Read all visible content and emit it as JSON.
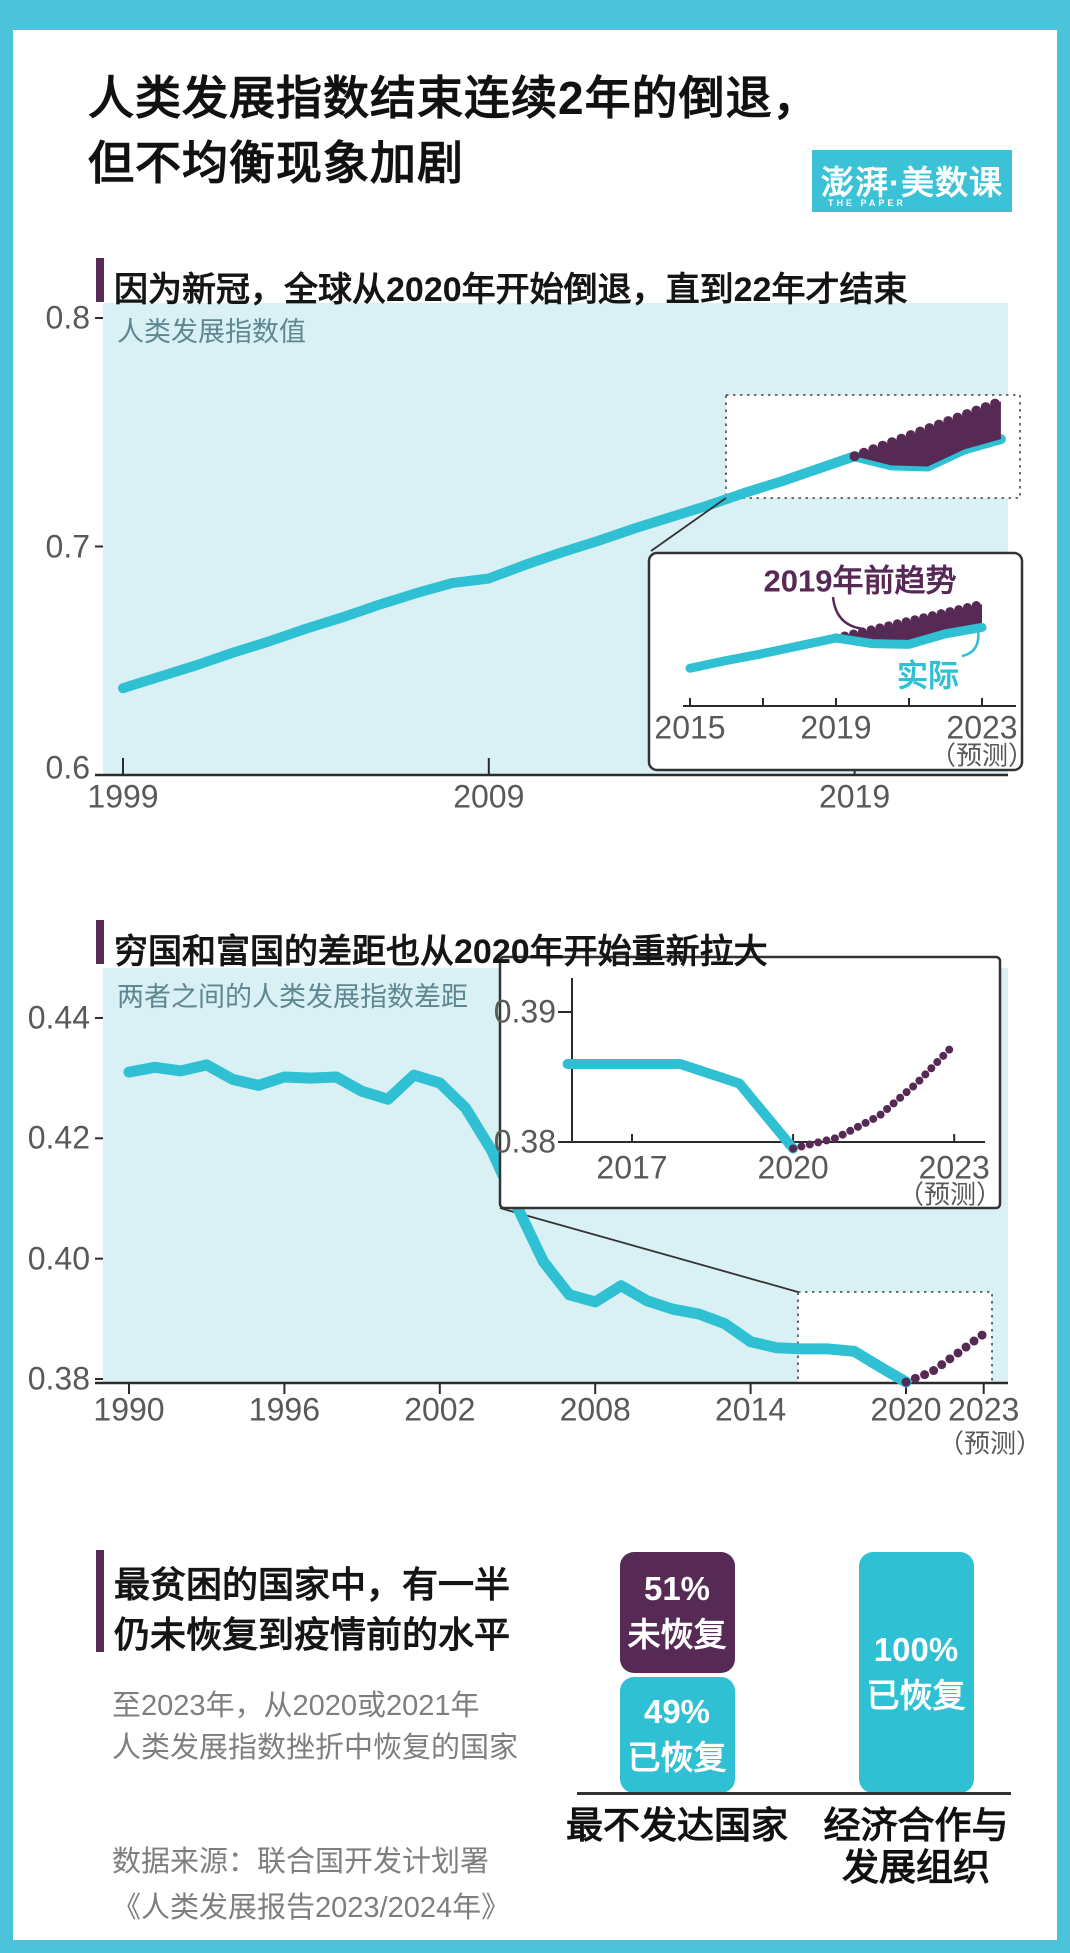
{
  "header": {
    "title_line1": "人类发展指数结束连续2年的倒退，",
    "title_line2": "但不均衡现象加剧"
  },
  "logo": {
    "name": "澎湃·美数课",
    "tagline": "THE PAPER"
  },
  "source": {
    "line1": "数据来源：联合国开发计划署",
    "line2": "《人类发展报告2023/2024年》"
  },
  "colors": {
    "cyan_line": "#2fc0d3",
    "frame_cyan": "#4cc3d9",
    "light_plot_bg": "#d9f0f4",
    "purple": "#572a55",
    "gray_text": "#7e7e7e"
  },
  "chart_data": [
    {
      "id": "world-hdi",
      "type": "line",
      "title": "因为新冠，全球从2020年开始倒退，直到22年才结束",
      "inplot_label": "人类发展指数值",
      "ylim": [
        0.6,
        0.8
      ],
      "grid": false,
      "yticks": [
        {
          "v": 0.8,
          "label": "0.8"
        },
        {
          "v": 0.7,
          "label": "0.7"
        },
        {
          "v": 0.6,
          "label": "0.6"
        }
      ],
      "xticks": [
        {
          "v": 1999,
          "label": "1999"
        },
        {
          "v": 2009,
          "label": "2009"
        },
        {
          "v": 2019,
          "label": "2019"
        }
      ],
      "series": [
        {
          "name": "实际",
          "x_start": 1999,
          "values": [
            0.638,
            0.643,
            0.648,
            0.6535,
            0.6585,
            0.664,
            0.669,
            0.6745,
            0.6795,
            0.684,
            0.686,
            0.692,
            0.6975,
            0.7025,
            0.708,
            0.713,
            0.718,
            0.7235,
            0.7285,
            0.734,
            0.7395,
            0.7355,
            0.735,
            0.7425,
            0.747
          ]
        },
        {
          "name": "2019年前趋势",
          "x_start": 2019,
          "style": "dotted-area",
          "values": [
            0.7395,
            0.7455,
            0.7515,
            0.7575,
            0.7635
          ]
        }
      ],
      "inset": {
        "trend_label": "2019年前趋势",
        "actual_label": "实际",
        "xticks": [
          {
            "v": 2015,
            "label": "2015"
          },
          {
            "v": 2019,
            "label": "2019"
          },
          {
            "v": 2023,
            "label": "2023"
          }
        ],
        "minor_xticks": [
          2017,
          2021
        ],
        "forecast_note": "（预测）",
        "actual_x_start": 2015,
        "actual_values": [
          0.718,
          0.7235,
          0.7285,
          0.734,
          0.7395,
          0.7355,
          0.735,
          0.7425,
          0.747
        ],
        "trend_x_start": 2019,
        "trend_values": [
          0.7395,
          0.7455,
          0.7515,
          0.7575,
          0.7635
        ]
      }
    },
    {
      "id": "rich-poor-gap",
      "type": "line",
      "title": "穷国和富国的差距也从2020年开始重新拉大",
      "inplot_label": "两者之间的人类发展指数差距",
      "ylim": [
        0.38,
        0.44
      ],
      "grid": false,
      "forecast_note": "（预测）",
      "yticks": [
        {
          "v": 0.44,
          "label": "0.44"
        },
        {
          "v": 0.42,
          "label": "0.42"
        },
        {
          "v": 0.4,
          "label": "0.40"
        },
        {
          "v": 0.38,
          "label": "0.38"
        }
      ],
      "xticks": [
        {
          "v": 1990,
          "label": "1990"
        },
        {
          "v": 1996,
          "label": "1996"
        },
        {
          "v": 2002,
          "label": "2002"
        },
        {
          "v": 2008,
          "label": "2008"
        },
        {
          "v": 2014,
          "label": "2014"
        },
        {
          "v": 2020,
          "label": "2020"
        },
        {
          "v": 2023,
          "label": "2023"
        }
      ],
      "series": [
        {
          "name": "实际",
          "x_start": 1990,
          "values": [
            0.431,
            0.4318,
            0.4312,
            0.4322,
            0.4298,
            0.4288,
            0.4302,
            0.43,
            0.4302,
            0.4278,
            0.4265,
            0.4305,
            0.4292,
            0.425,
            0.418,
            0.4085,
            0.3995,
            0.394,
            0.3928,
            0.3955,
            0.393,
            0.3916,
            0.3908,
            0.3892,
            0.3862,
            0.3852,
            0.385,
            0.385,
            0.3846,
            0.382,
            0.3795
          ]
        },
        {
          "name": "预测",
          "x_start": 2020,
          "style": "dotted",
          "values": [
            0.3795,
            0.3812,
            0.3843,
            0.3875
          ]
        }
      ],
      "inset": {
        "yticks": [
          {
            "v": 0.39,
            "label": "0.39"
          },
          {
            "v": 0.38,
            "label": "0.38"
          }
        ],
        "xticks": [
          {
            "v": 2017,
            "label": "2017"
          },
          {
            "v": 2020,
            "label": "2020"
          },
          {
            "v": 2023,
            "label": "2023"
          }
        ],
        "forecast_note": "（预测）",
        "actual_x": [
          2015.8,
          2017.9,
          2019,
          2020
        ],
        "actual_values": [
          0.386,
          0.386,
          0.3845,
          0.3795
        ],
        "proj_x": [
          2020,
          2020.8,
          2021.6,
          2022.3,
          2023
        ],
        "proj_values": [
          0.3795,
          0.3803,
          0.382,
          0.3845,
          0.3875
        ]
      }
    },
    {
      "id": "recovery-share",
      "type": "bar",
      "title_line1": "最贫困的国家中，有一半",
      "title_line2": "仍未恢复到疫情前的水平",
      "subtitle_line1": "至2023年，从2020或2021年",
      "subtitle_line2": "人类发展指数挫折中恢复的国家",
      "ylim": [
        0,
        100
      ],
      "bars": [
        {
          "label_lines": [
            "最不发达国家"
          ],
          "segments": [
            {
              "value": 51,
              "pct": "51%",
              "status": "未恢复",
              "color": "#572a55"
            },
            {
              "value": 49,
              "pct": "49%",
              "status": "已恢复",
              "color": "#2fc0d3"
            }
          ]
        },
        {
          "label_lines": [
            "经济合作与",
            "发展组织"
          ],
          "segments": [
            {
              "value": 100,
              "pct": "100%",
              "status": "已恢复",
              "color": "#2fc0d3"
            }
          ]
        }
      ]
    }
  ]
}
